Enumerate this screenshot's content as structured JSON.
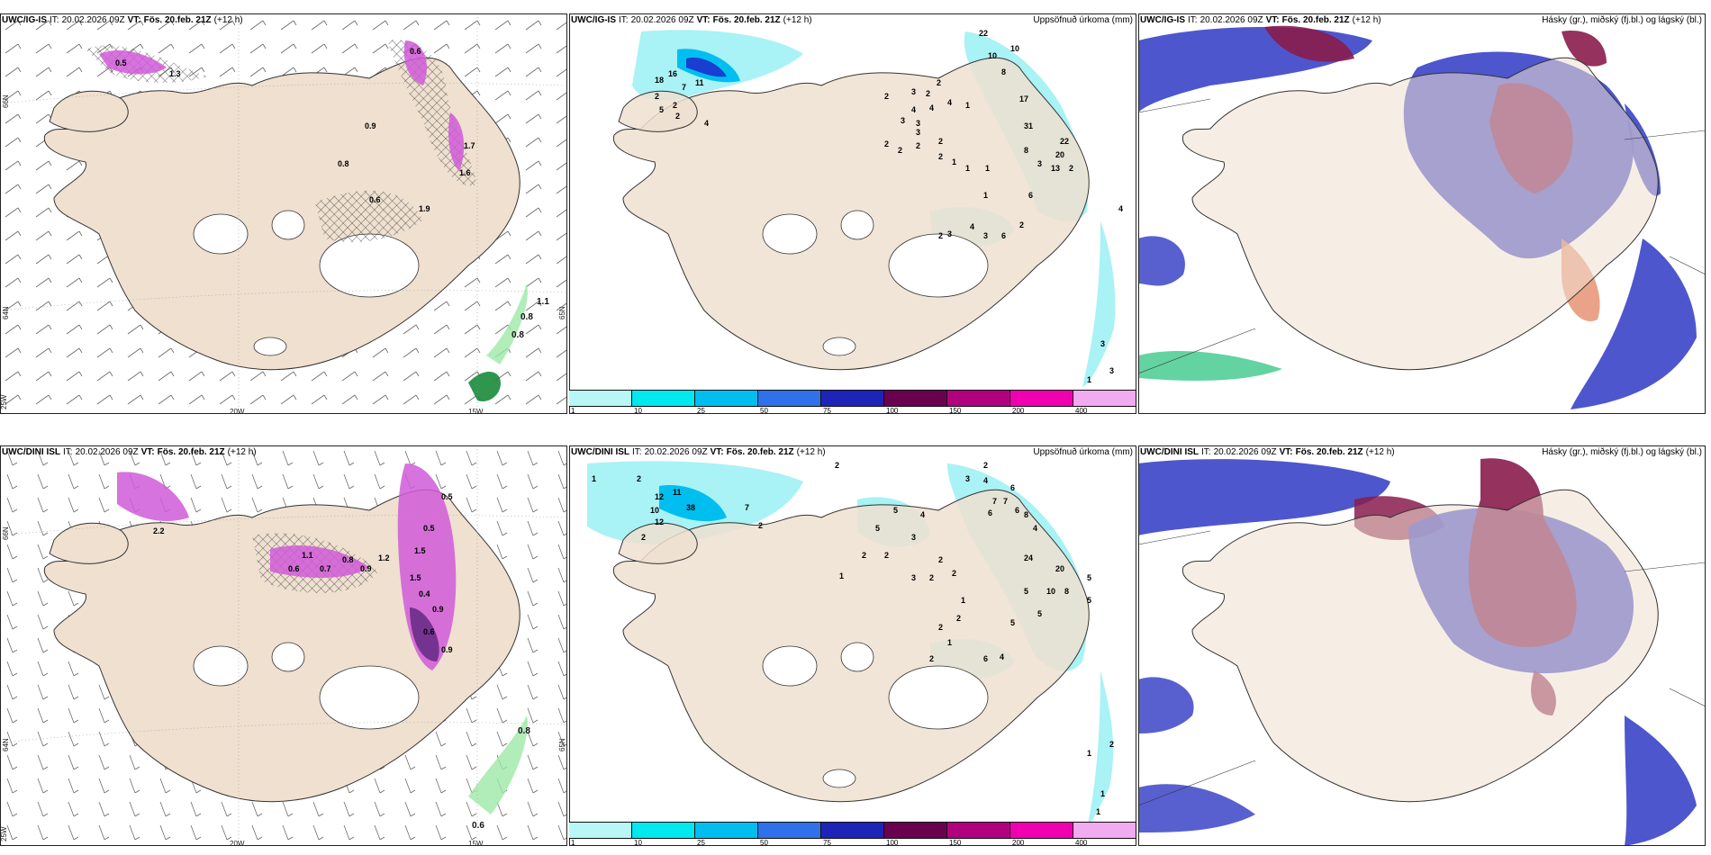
{
  "panels": {
    "p1": {
      "model": "UWC/IG-IS",
      "it_label": "IT:",
      "it_value": "20.02.2026 09Z",
      "vt_label": "VT:",
      "vt_value": "Fös. 20.feb. 21Z",
      "lead": "(+12 h)",
      "right_title": "",
      "lon_labels": [
        "20W",
        "15W",
        "25W"
      ],
      "lat_labels": [
        "66N",
        "64N",
        "65N"
      ],
      "values": [
        "1.1",
        "0.8",
        "0.8",
        "0.5",
        "1.3",
        "0.8",
        "1.6",
        "0.6",
        "1.9",
        "0.9",
        "0.6",
        "1.7"
      ]
    },
    "p2": {
      "model": "UWC/IG-IS",
      "it_label": "IT:",
      "it_value": "20.02.2026 09Z",
      "vt_label": "VT:",
      "vt_value": "Fös. 20.feb. 21Z",
      "lead": "(+12 h)",
      "right_title": "Uppsöfnuð úrkoma (mm)",
      "values": [
        "22",
        "10",
        "10",
        "8",
        "17",
        "31",
        "22",
        "20",
        "13",
        "2",
        "3",
        "6",
        "8",
        "4",
        "3",
        "2",
        "2",
        "3",
        "1",
        "1",
        "1",
        "6",
        "4",
        "3",
        "3",
        "1",
        "4",
        "2",
        "1",
        "2",
        "2",
        "3",
        "3",
        "4",
        "2",
        "2",
        "3",
        "2",
        "1",
        "2",
        "2",
        "3",
        "4",
        "18",
        "16",
        "7",
        "2",
        "11",
        "5",
        "2",
        "2",
        "4"
      ]
    },
    "p3": {
      "model": "UWC/IG-IS",
      "it_label": "IT:",
      "it_value": "20.02.2026 09Z",
      "vt_label": "VT:",
      "vt_value": "Fös. 20.feb. 21Z",
      "lead": "(+12 h)",
      "right_title": "Hásky (gr.), miðský (fj.bl.) og lágský (bl.)"
    },
    "p4": {
      "model": "UWC/DINI ISL",
      "it_label": "IT:",
      "it_value": "20.02.2026 09Z",
      "vt_label": "VT:",
      "vt_value": "Fös. 20.feb. 21Z",
      "lead": "(+12 h)",
      "right_title": "",
      "lon_labels": [
        "20W",
        "15W",
        "25W"
      ],
      "lat_labels": [
        "66N",
        "64N",
        "65N"
      ],
      "values": [
        "2.2",
        "1.5",
        "0.5",
        "1.5",
        "0.4",
        "0.9",
        "0.6",
        "1.1",
        "0.7",
        "0.8",
        "0.9",
        "0.6",
        "1.2",
        "0.5",
        "0.9",
        "0.8",
        "0.6"
      ]
    },
    "p5": {
      "model": "UWC/DINI ISL",
      "it_label": "IT:",
      "it_value": "20.02.2026 09Z",
      "vt_label": "VT:",
      "vt_value": "Fös. 20.feb. 21Z",
      "lead": "(+12 h)",
      "right_title": "Uppsöfnuð úrkoma (mm)",
      "values": [
        "2",
        "3",
        "4",
        "2",
        "6",
        "7",
        "7",
        "6",
        "8",
        "6",
        "4",
        "24",
        "20",
        "5",
        "10",
        "8",
        "5",
        "5",
        "5",
        "5",
        "6",
        "4",
        "2",
        "1",
        "2",
        "2",
        "3",
        "2",
        "2",
        "1",
        "2",
        "5",
        "5",
        "4",
        "3",
        "2",
        "2",
        "1",
        "12",
        "11",
        "10",
        "12",
        "38",
        "2",
        "7",
        "2",
        "2",
        "1",
        "1",
        "1",
        "2",
        "1"
      ]
    },
    "p6": {
      "model": "UWC/DINI ISL",
      "it_label": "IT:",
      "it_value": "20.02.2026 09Z",
      "vt_label": "VT:",
      "vt_value": "Fös. 20.feb. 21Z",
      "lead": "(+12 h)",
      "right_title": "Hásky (gr.), miðský (fj.bl.) og lágský (bl.)"
    }
  },
  "colorbar": {
    "labels": [
      "1",
      "10",
      "25",
      "50",
      "75",
      "100",
      "150",
      "200",
      "400"
    ],
    "colors": [
      "#b9f7f7",
      "#00e8f0",
      "#00bff0",
      "#3070e8",
      "#1e24b8",
      "#6a0050",
      "#b0007e",
      "#f000b0",
      "#f2aaf0"
    ]
  },
  "colors": {
    "land": "#efe0d0",
    "coast": "#333333",
    "precip_light": "#a9f2f5",
    "precip_mid": "#00e0f0",
    "precip_dark": "#1a3fd0",
    "cloud_low": "#3b44c8",
    "cloud_mid": "#8a1c4c",
    "cloud_high": "#3cc88a",
    "snow_pink": "#d05ad8",
    "snow_purple": "#6a2c8a",
    "green_precip": "#1a8a3a"
  }
}
